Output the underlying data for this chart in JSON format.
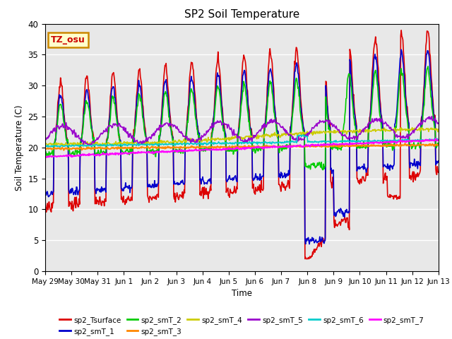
{
  "title": "SP2 Soil Temperature",
  "xlabel": "Time",
  "ylabel": "Soil Temperature (C)",
  "ylim": [
    0,
    40
  ],
  "annotation_text": "TZ_osu",
  "annotation_color": "#cc0000",
  "annotation_bg": "#ffffcc",
  "annotation_border": "#cc8800",
  "bg_color": "#e8e8e8",
  "x_tick_labels": [
    "May 29",
    "May 30",
    "May 31",
    "Jun 1",
    "Jun 2",
    "Jun 3",
    "Jun 4",
    "Jun 5",
    "Jun 6",
    "Jun 7",
    "Jun 8",
    "Jun 9",
    "Jun 10",
    "Jun 11",
    "Jun 12",
    "Jun 13"
  ],
  "series_order": [
    "sp2_Tsurface",
    "sp2_smT_1",
    "sp2_smT_2",
    "sp2_smT_3",
    "sp2_smT_4",
    "sp2_smT_5",
    "sp2_smT_6",
    "sp2_smT_7"
  ],
  "series": {
    "sp2_Tsurface": {
      "color": "#dd0000",
      "lw": 1.2
    },
    "sp2_smT_1": {
      "color": "#0000cc",
      "lw": 1.2
    },
    "sp2_smT_2": {
      "color": "#00cc00",
      "lw": 1.2
    },
    "sp2_smT_3": {
      "color": "#ff8800",
      "lw": 1.5
    },
    "sp2_smT_4": {
      "color": "#cccc00",
      "lw": 1.2
    },
    "sp2_smT_5": {
      "color": "#9900cc",
      "lw": 1.2
    },
    "sp2_smT_6": {
      "color": "#00cccc",
      "lw": 1.2
    },
    "sp2_smT_7": {
      "color": "#ff00ff",
      "lw": 1.5
    }
  }
}
